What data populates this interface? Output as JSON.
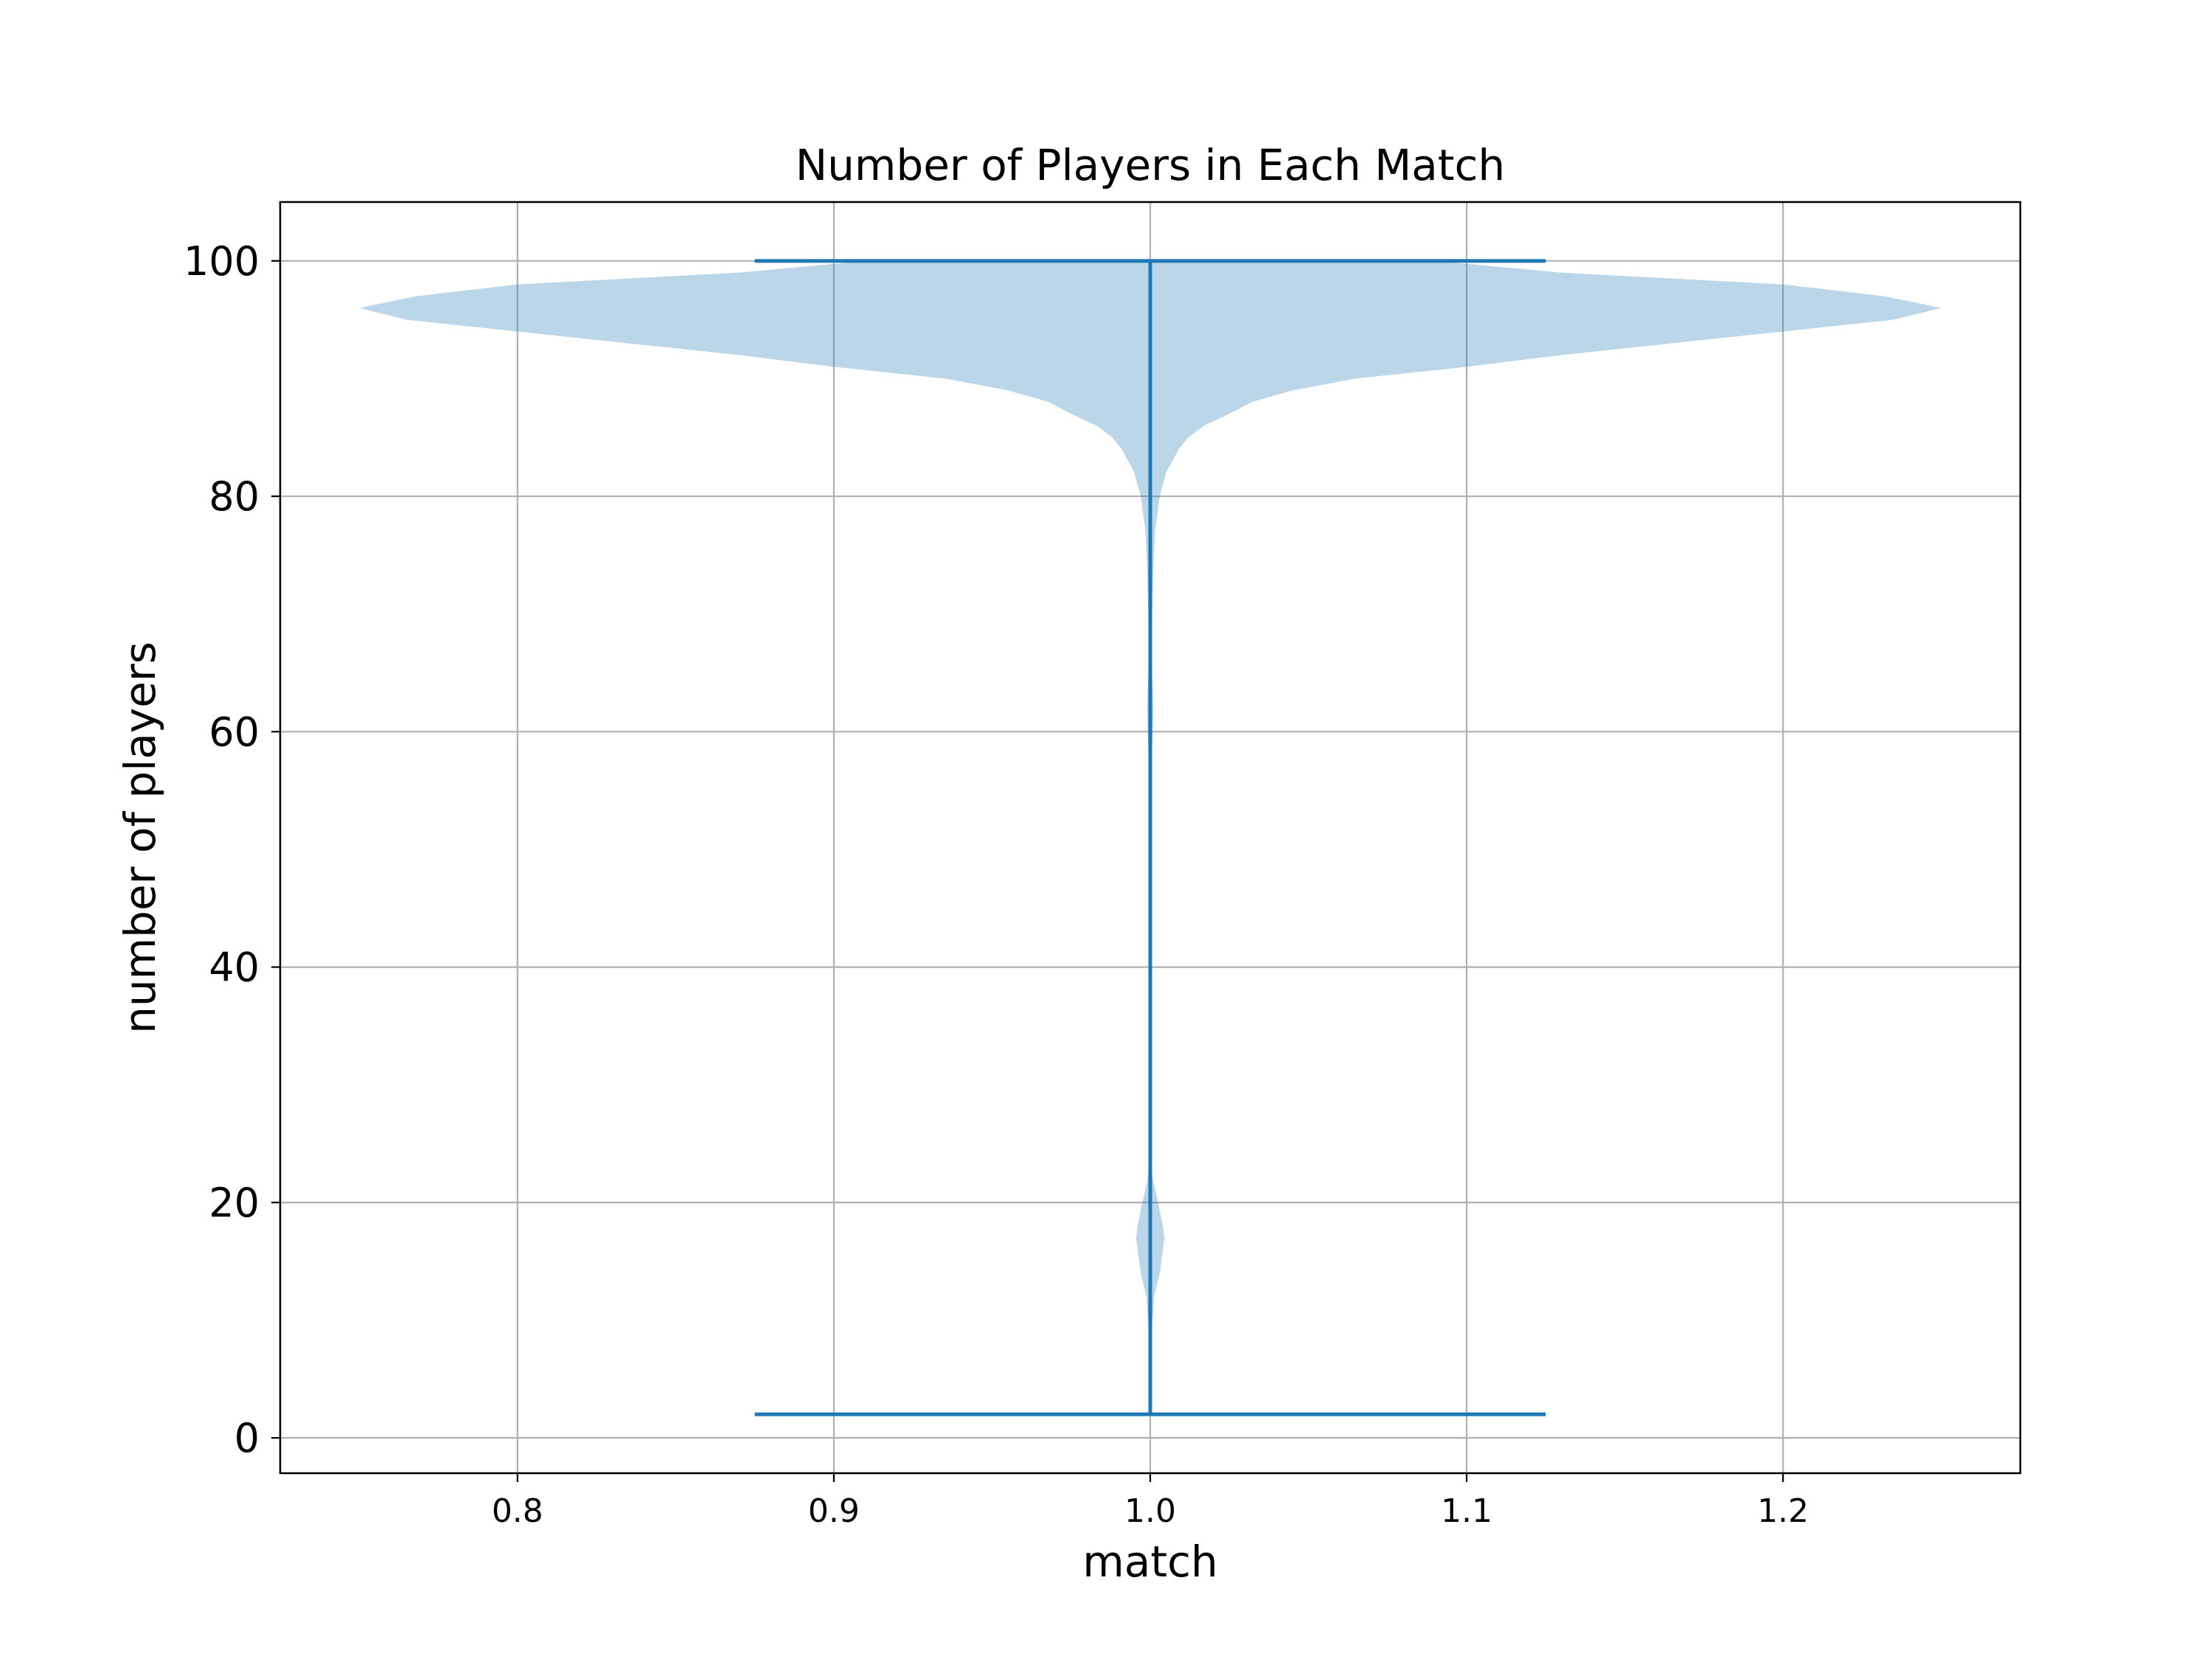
{
  "chart_data": {
    "type": "violin",
    "title": "Number of Players in Each Match",
    "xlabel": "match",
    "ylabel": "number of players",
    "xlim": [
      0.725,
      1.275
    ],
    "ylim": [
      -3,
      105
    ],
    "xticks": [
      0.8,
      0.9,
      1.0,
      1.1,
      1.2
    ],
    "xtick_labels": [
      "0.8",
      "0.9",
      "1.0",
      "1.1",
      "1.2"
    ],
    "yticks": [
      0,
      20,
      40,
      60,
      80,
      100
    ],
    "ytick_labels": [
      "0",
      "20",
      "40",
      "60",
      "80",
      "100"
    ],
    "grid": true,
    "colors": {
      "body": "#1f77b4",
      "body_alpha": 0.3,
      "lines": "#1f77b4"
    },
    "violin": {
      "position": 1.0,
      "min": 2,
      "max": 100,
      "cap_width": 0.125,
      "half_width_profile": [
        [
          2,
          0.0
        ],
        [
          8,
          0.0003
        ],
        [
          12,
          0.0012
        ],
        [
          14,
          0.003
        ],
        [
          16,
          0.004
        ],
        [
          17,
          0.0045
        ],
        [
          18,
          0.004
        ],
        [
          20,
          0.0025
        ],
        [
          22,
          0.0008
        ],
        [
          24,
          0.0002
        ],
        [
          30,
          0.0002
        ],
        [
          36,
          0.0003
        ],
        [
          40,
          0.0006
        ],
        [
          44,
          0.0003
        ],
        [
          50,
          0.0002
        ],
        [
          56,
          0.0003
        ],
        [
          60,
          0.0008
        ],
        [
          62,
          0.001
        ],
        [
          66,
          0.0005
        ],
        [
          70,
          0.0006
        ],
        [
          74,
          0.001
        ],
        [
          77,
          0.0015
        ],
        [
          80,
          0.003
        ],
        [
          82,
          0.005
        ],
        [
          84,
          0.009
        ],
        [
          85,
          0.012
        ],
        [
          86,
          0.017
        ],
        [
          87,
          0.025
        ],
        [
          88,
          0.032
        ],
        [
          89,
          0.045
        ],
        [
          90,
          0.065
        ],
        [
          91,
          0.1
        ],
        [
          92,
          0.13
        ],
        [
          94,
          0.2
        ],
        [
          95,
          0.235
        ],
        [
          96,
          0.25
        ],
        [
          97,
          0.232
        ],
        [
          98,
          0.2
        ],
        [
          99,
          0.13
        ],
        [
          100,
          0.09
        ]
      ]
    }
  }
}
